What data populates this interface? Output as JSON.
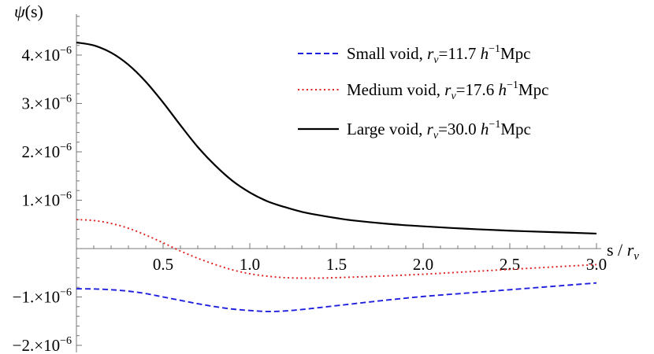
{
  "chart_data": {
    "type": "line",
    "xlabel": "s / r_v",
    "ylabel": "ψ(s)",
    "xlim": [
      0,
      3.0
    ],
    "ylim": [
      -2.15e-06,
      4.6e-06
    ],
    "x_ticks": [
      {
        "value": 0.5,
        "label": "0.5"
      },
      {
        "value": 1.0,
        "label": "1.0"
      },
      {
        "value": 1.5,
        "label": "1.5"
      },
      {
        "value": 2.0,
        "label": "2.0"
      },
      {
        "value": 2.5,
        "label": "2.5"
      },
      {
        "value": 3.0,
        "label": "3.0"
      }
    ],
    "y_ticks": [
      {
        "value": 4e-06,
        "mantissa": "4.",
        "exponent": "−6"
      },
      {
        "value": 3e-06,
        "mantissa": "3.",
        "exponent": "−6"
      },
      {
        "value": 2e-06,
        "mantissa": "2.",
        "exponent": "−6"
      },
      {
        "value": 1e-06,
        "mantissa": "1.",
        "exponent": "−6"
      },
      {
        "value": -1e-06,
        "mantissa": "−1.",
        "exponent": "−6"
      },
      {
        "value": -2e-06,
        "mantissa": "−2.",
        "exponent": "−6"
      }
    ],
    "grid": false,
    "legend_position": "top-right",
    "series": [
      {
        "name": "Small void, r_v=11.7 h^-1 Mpc",
        "legend_prefix": "Small void, ",
        "legend_value": "=11.7 ",
        "color": "#1f1fe0",
        "style": "dashed",
        "x": [
          0.0,
          0.1,
          0.2,
          0.3,
          0.4,
          0.5,
          0.6,
          0.7,
          0.8,
          0.9,
          1.0,
          1.1,
          1.2,
          1.3,
          1.4,
          1.5,
          1.75,
          2.0,
          2.25,
          2.5,
          2.75,
          3.0
        ],
        "y": [
          -8.3e-07,
          -8.35e-07,
          -8.5e-07,
          -8.8e-07,
          -9.3e-07,
          -1e-06,
          -1.07e-06,
          -1.14e-06,
          -1.2e-06,
          -1.25e-06,
          -1.28e-06,
          -1.3e-06,
          -1.29e-06,
          -1.26e-06,
          -1.22e-06,
          -1.18e-06,
          -1.08e-06,
          -9.9e-07,
          -9.2e-07,
          -8.5e-07,
          -7.8e-07,
          -7.1e-07
        ]
      },
      {
        "name": "Medium void, r_v=17.6 h^-1 Mpc",
        "legend_prefix": "Medium void, ",
        "legend_value": "=17.6 ",
        "color": "#e01f1f",
        "style": "dotted",
        "x": [
          0.0,
          0.1,
          0.2,
          0.3,
          0.4,
          0.5,
          0.6,
          0.7,
          0.8,
          0.9,
          1.0,
          1.1,
          1.2,
          1.3,
          1.4,
          1.5,
          1.75,
          2.0,
          2.25,
          2.5,
          2.75,
          3.0
        ],
        "y": [
          6e-07,
          5.8e-07,
          5.2e-07,
          4.2e-07,
          2.8e-07,
          1.2e-07,
          -5e-08,
          -2e-07,
          -3.3e-07,
          -4.4e-07,
          -5.2e-07,
          -5.7e-07,
          -6e-07,
          -6.1e-07,
          -6.1e-07,
          -6e-07,
          -5.7e-07,
          -5.3e-07,
          -4.8e-07,
          -4.3e-07,
          -3.8e-07,
          -3.3e-07
        ]
      },
      {
        "name": "Large void, r_v=30.0 h^-1 Mpc",
        "legend_prefix": "Large void, ",
        "legend_value": "=30.0 ",
        "color": "#000000",
        "style": "solid",
        "x": [
          0.0,
          0.1,
          0.2,
          0.3,
          0.4,
          0.5,
          0.6,
          0.7,
          0.8,
          0.9,
          1.0,
          1.1,
          1.2,
          1.3,
          1.4,
          1.5,
          1.6,
          1.8,
          2.0,
          2.25,
          2.5,
          2.75,
          3.0
        ],
        "y": [
          4.26e-06,
          4.2e-06,
          4.05e-06,
          3.8e-06,
          3.45e-06,
          3.02e-06,
          2.55e-06,
          2.1e-06,
          1.72e-06,
          1.4e-06,
          1.16e-06,
          9.8e-07,
          8.6e-07,
          7.6e-07,
          6.9e-07,
          6.3e-07,
          5.8e-07,
          5.1e-07,
          4.6e-07,
          4.1e-07,
          3.7e-07,
          3.4e-07,
          3.1e-07
        ]
      }
    ]
  }
}
